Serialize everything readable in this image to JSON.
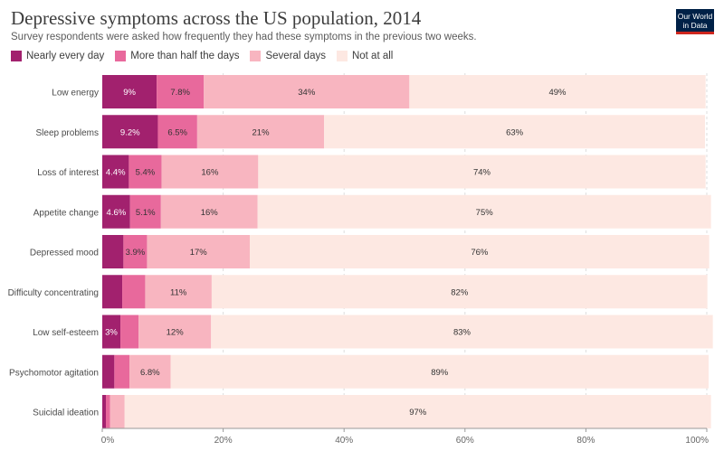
{
  "header": {
    "title": "Depressive symptoms across the US population, 2014",
    "subtitle": "Survey respondents were asked how frequently they had these symptoms in the previous two weeks.",
    "logo_line1": "Our World",
    "logo_line2": "in Data"
  },
  "colors": {
    "series": [
      "#a2216e",
      "#e8699c",
      "#f8b5c0",
      "#fde8e2"
    ],
    "axis": "#999999",
    "grid": "#dddddd",
    "tick_label": "#666666",
    "category_label": "#4a4a4a",
    "data_label_dark_bg": "#ffffff",
    "data_label_light_bg": "#333333"
  },
  "chart_data": {
    "type": "bar",
    "orientation": "horizontal",
    "stacked": true,
    "title": "Depressive symptoms across the US population, 2014",
    "subtitle": "Survey respondents were asked how frequently they had these symptoms in the previous two weeks.",
    "legend_position": "top-left",
    "xlim": [
      0,
      100
    ],
    "x_ticks": [
      0,
      20,
      40,
      60,
      80,
      100
    ],
    "x_tick_labels": [
      "0%",
      "20%",
      "40%",
      "60%",
      "80%",
      "100%"
    ],
    "grid": true,
    "categories": [
      "Low energy",
      "Sleep problems",
      "Loss of interest",
      "Appetite change",
      "Depressed mood",
      "Difficulty concentrating",
      "Low self-esteem",
      "Psychomotor agitation",
      "Suicidal ideation"
    ],
    "series": [
      {
        "name": "Nearly every day",
        "values": [
          9,
          9.2,
          4.4,
          4.6,
          3.5,
          3.3,
          3,
          2,
          0.6
        ],
        "labels": [
          "9%",
          "9.2%",
          "4.4%",
          "4.6%",
          "",
          "",
          "3%",
          "",
          ""
        ]
      },
      {
        "name": "More than half the days",
        "values": [
          7.8,
          6.5,
          5.4,
          5.1,
          3.9,
          3.8,
          3,
          2.5,
          0.7
        ],
        "labels": [
          "7.8%",
          "6.5%",
          "5.4%",
          "5.1%",
          "3.9%",
          "",
          "",
          "",
          ""
        ]
      },
      {
        "name": "Several days",
        "values": [
          34,
          21,
          16,
          16,
          17,
          11,
          12,
          6.8,
          2.4
        ],
        "labels": [
          "34%",
          "21%",
          "16%",
          "16%",
          "17%",
          "11%",
          "12%",
          "6.8%",
          ""
        ]
      },
      {
        "name": "Not at all",
        "values": [
          49,
          63,
          74,
          75,
          76,
          82,
          83,
          89,
          97
        ],
        "labels": [
          "49%",
          "63%",
          "74%",
          "75%",
          "76%",
          "82%",
          "83%",
          "89%",
          "97%"
        ]
      }
    ]
  }
}
